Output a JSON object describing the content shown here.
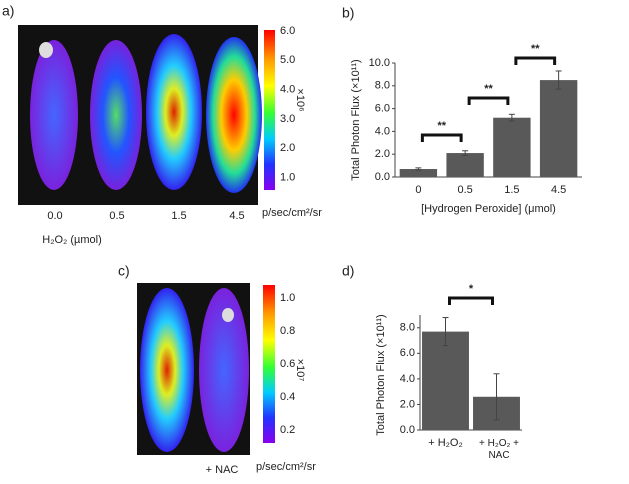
{
  "panels": {
    "a": "a)",
    "b": "b)",
    "c": "c)",
    "d": "d)"
  },
  "image_a": {
    "labels": [
      "0.0",
      "0.5",
      "1.5",
      "4.5"
    ],
    "xlabel": "H₂O₂ (µmol)",
    "unit": "p/sec/cm²/sr",
    "scale": "×10⁶",
    "colorbar_ticks": [
      "6.0",
      "5.0",
      "4.0",
      "3.0",
      "2.0",
      "1.0"
    ]
  },
  "image_c": {
    "label": "+ NAC",
    "unit": "p/sec/cm²/sr",
    "scale": "×10⁷",
    "colorbar_ticks": [
      "1.0",
      "0.8",
      "0.6",
      "0.4",
      "0.2"
    ]
  },
  "chart_data": [
    {
      "type": "bar",
      "xlabel": "[Hydrogen Peroxide] (μmol)",
      "ylabel": "Total Photon Flux (×10¹¹)",
      "categories": [
        "0",
        "0.5",
        "1.5",
        "4.5"
      ],
      "values": [
        0.7,
        2.1,
        5.2,
        8.5
      ],
      "errors": [
        0.1,
        0.2,
        0.3,
        0.8
      ],
      "color": "#595959",
      "ylim": [
        0,
        10
      ],
      "yticks": [
        {
          "value": 0,
          "label": "0.0"
        },
        {
          "value": 2,
          "label": "2.0"
        },
        {
          "value": 4,
          "label": "4.0"
        },
        {
          "value": 6,
          "label": "6.0"
        },
        {
          "value": 8,
          "label": "8.0"
        },
        {
          "value": 10,
          "label": "10.0"
        }
      ],
      "annotations": [
        "**",
        "**",
        "**"
      ]
    },
    {
      "type": "bar",
      "ylabel": "Total Photon Flux (×10¹¹)",
      "categories": [
        "+ H₂O₂",
        "+ H₂O₂ + NAC"
      ],
      "values": [
        7.7,
        2.6
      ],
      "errors": [
        1.1,
        1.8
      ],
      "color": "#595959",
      "ylim": [
        0,
        9
      ],
      "yticks": [
        {
          "value": 0,
          "label": "0.0"
        },
        {
          "value": 2,
          "label": "2.0"
        },
        {
          "value": 4,
          "label": "4.0"
        },
        {
          "value": 6,
          "label": "6.0"
        },
        {
          "value": 8,
          "label": "8.0"
        }
      ],
      "annotations": [
        "*"
      ]
    }
  ]
}
